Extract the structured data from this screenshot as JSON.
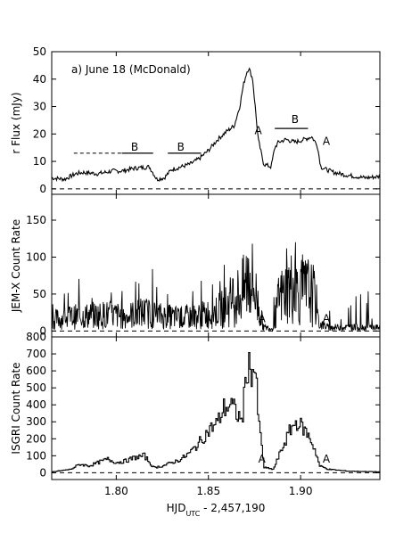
{
  "chart_data": [
    {
      "type": "line",
      "ylabel": "r Flux (mJy)",
      "ylim": [
        -2,
        50
      ],
      "yticks": [
        0,
        10,
        20,
        30,
        40,
        50
      ],
      "panel_label": "a) June 18 (McDonald)",
      "baseline": 0,
      "series": [
        {
          "x": [
            1.765,
            1.772,
            1.778,
            1.782,
            1.79,
            1.798,
            1.803,
            1.81,
            1.818,
            1.822,
            1.826,
            1.83,
            1.835,
            1.84,
            1.845,
            1.85,
            1.855,
            1.86,
            1.864,
            1.867,
            1.869,
            1.871,
            1.872,
            1.874,
            1.877,
            1.88,
            1.884,
            1.886,
            1.888,
            1.892,
            1.897,
            1.902,
            1.906,
            1.909,
            1.911,
            1.914,
            1.918,
            1.925,
            1.935,
            1.943
          ],
          "y": [
            4,
            3.5,
            5.5,
            6,
            5.5,
            6.5,
            6.5,
            7.5,
            8,
            3.5,
            4,
            7,
            8,
            9,
            11,
            14,
            18,
            21,
            23,
            30,
            38,
            43,
            44,
            40,
            18,
            9,
            8,
            15,
            17,
            18,
            17,
            18,
            19,
            16,
            8,
            7,
            6,
            5,
            4,
            4.5
          ]
        }
      ],
      "annotations": [
        {
          "text": "B",
          "x": 1.81,
          "y": 14,
          "bar": [
            1.803,
            1.82
          ],
          "bar_y": 13
        },
        {
          "text": "B",
          "x": 1.835,
          "y": 14,
          "bar": [
            1.828,
            1.846
          ],
          "bar_y": 13
        },
        {
          "text": "B",
          "x": 1.897,
          "y": 24,
          "bar": [
            1.886,
            1.904
          ],
          "bar_y": 22
        },
        {
          "text": "A",
          "x": 1.877,
          "y": 20
        },
        {
          "text": "A",
          "x": 1.914,
          "y": 16
        }
      ],
      "dashed_segments": [
        {
          "x": [
            1.777,
            1.803
          ],
          "y": 13
        }
      ]
    },
    {
      "type": "line",
      "ylabel": "JEM-X Count Rate",
      "ylim": [
        -8,
        185
      ],
      "yticks": [
        0,
        50,
        100,
        150
      ],
      "baseline": 0,
      "series": [
        {
          "x": [
            1.765,
            1.78,
            1.795,
            1.805,
            1.815,
            1.825,
            1.835,
            1.845,
            1.852,
            1.858,
            1.864,
            1.868,
            1.87,
            1.872,
            1.874,
            1.876,
            1.878,
            1.88,
            1.885,
            1.888,
            1.892,
            1.896,
            1.9,
            1.904,
            1.908,
            1.91,
            1.915,
            1.925,
            1.943
          ],
          "y": [
            15,
            20,
            22,
            20,
            25,
            20,
            18,
            20,
            25,
            30,
            45,
            50,
            60,
            80,
            65,
            45,
            25,
            5,
            3,
            40,
            55,
            60,
            50,
            55,
            45,
            10,
            5,
            5,
            5
          ]
        }
      ],
      "annotations": [
        {
          "text": "A",
          "x": 1.879,
          "y": 12
        },
        {
          "text": "A",
          "x": 1.914,
          "y": 12
        }
      ]
    },
    {
      "type": "line",
      "xlabel": "HJD",
      "xlabel_sub": "UTC",
      "xlabel_suffix": " - 2,457,190",
      "ylabel": "ISGRI Count Rate",
      "xlim": [
        1.765,
        1.943
      ],
      "xticks": [
        1.8,
        1.85,
        1.9
      ],
      "xtick_labels": [
        "1.80",
        "1.85",
        "1.90"
      ],
      "ylim": [
        -40,
        800
      ],
      "yticks": [
        0,
        100,
        200,
        300,
        400,
        500,
        600,
        700
      ],
      "yticks_labeled_top": "800",
      "baseline": 0,
      "series": [
        {
          "x": [
            1.765,
            1.775,
            1.78,
            1.785,
            1.79,
            1.795,
            1.8,
            1.805,
            1.81,
            1.815,
            1.82,
            1.825,
            1.83,
            1.835,
            1.84,
            1.845,
            1.85,
            1.855,
            1.858,
            1.862,
            1.865,
            1.868,
            1.87,
            1.871,
            1.873,
            1.875,
            1.877,
            1.88,
            1.885,
            1.888,
            1.892,
            1.895,
            1.898,
            1.902,
            1.905,
            1.908,
            1.91,
            1.915,
            1.925,
            1.943
          ],
          "y": [
            5,
            20,
            50,
            40,
            60,
            80,
            60,
            70,
            90,
            100,
            30,
            40,
            60,
            80,
            120,
            180,
            250,
            300,
            380,
            400,
            350,
            300,
            550,
            640,
            600,
            620,
            300,
            30,
            20,
            100,
            200,
            270,
            300,
            250,
            200,
            120,
            40,
            20,
            10,
            5
          ]
        }
      ],
      "annotations": [
        {
          "text": "A",
          "x": 1.879,
          "y": 60
        },
        {
          "text": "A",
          "x": 1.914,
          "y": 60
        }
      ]
    }
  ]
}
